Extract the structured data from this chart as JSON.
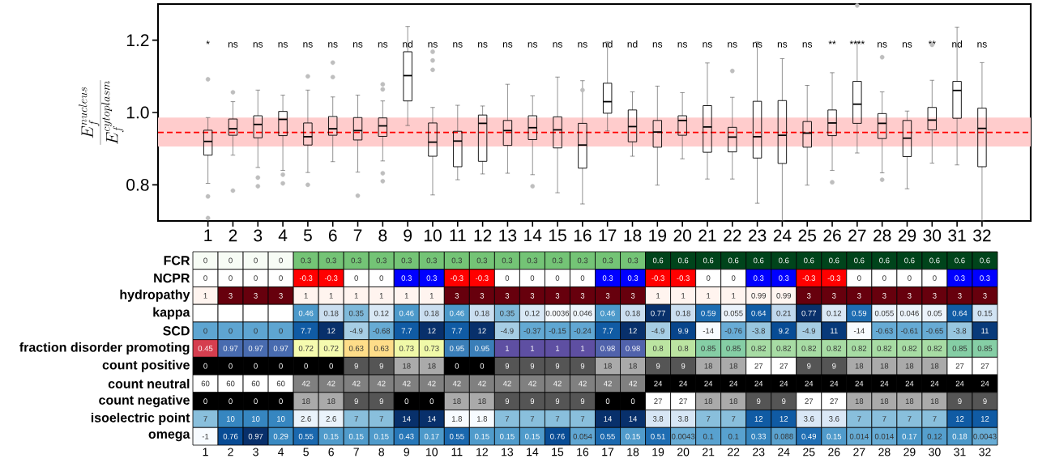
{
  "chart_data": [
    {
      "type": "box",
      "ylabel": "\\frac{E_f^{nucleus}}{E_f^{cytoplasm}}",
      "categories": [
        "1",
        "2",
        "3",
        "4",
        "5",
        "6",
        "7",
        "8",
        "9",
        "10",
        "11",
        "12",
        "13",
        "14",
        "15",
        "16",
        "17",
        "18",
        "19",
        "20",
        "21",
        "22",
        "23",
        "24",
        "25",
        "26",
        "27",
        "28",
        "29",
        "30",
        "31",
        "32"
      ],
      "boxes": [
        {
          "low": 0.804,
          "q1": 0.882,
          "median": 0.92,
          "q3": 0.951,
          "high": 0.986,
          "outliers": [
            1.092,
            0.768,
            0.708
          ]
        },
        {
          "low": 0.882,
          "q1": 0.937,
          "median": 0.955,
          "q3": 0.982,
          "high": 1.03,
          "outliers": [
            1.056,
            0.784
          ]
        },
        {
          "low": 0.848,
          "q1": 0.93,
          "median": 0.967,
          "q3": 0.991,
          "high": 1.062,
          "outliers": [
            0.82,
            0.796
          ]
        },
        {
          "low": 0.84,
          "q1": 0.936,
          "median": 0.981,
          "q3": 1.003,
          "high": 1.048,
          "outliers": [
            0.828,
            0.804
          ]
        },
        {
          "low": 0.834,
          "q1": 0.91,
          "median": 0.933,
          "q3": 0.971,
          "high": 1.062,
          "outliers": [
            1.1,
            0.8
          ]
        },
        {
          "low": 0.864,
          "q1": 0.937,
          "median": 0.955,
          "q3": 0.989,
          "high": 1.043,
          "outliers": [
            1.138,
            1.098
          ]
        },
        {
          "low": 0.835,
          "q1": 0.924,
          "median": 0.95,
          "q3": 0.986,
          "high": 1.048,
          "outliers": [
            0.77
          ]
        },
        {
          "low": 0.866,
          "q1": 0.934,
          "median": 0.963,
          "q3": 0.985,
          "high": 1.032,
          "outliers": [
            1.078,
            1.064,
            0.832,
            0.81
          ]
        },
        {
          "low": 0.964,
          "q1": 1.032,
          "median": 1.102,
          "q3": 1.168,
          "high": 1.238
        },
        {
          "low": 0.772,
          "q1": 0.879,
          "median": 0.918,
          "q3": 0.971,
          "high": 1.014,
          "outliers": [
            1.168,
            1.144,
            1.118
          ]
        },
        {
          "low": 0.814,
          "q1": 0.85,
          "median": 0.921,
          "q3": 0.948,
          "high": 1.02
        },
        {
          "low": 0.83,
          "q1": 0.865,
          "median": 0.97,
          "q3": 0.993,
          "high": 1.018
        },
        {
          "low": 0.832,
          "q1": 0.909,
          "median": 0.95,
          "q3": 0.978,
          "high": 1.078
        },
        {
          "low": 0.828,
          "q1": 0.925,
          "median": 0.958,
          "q3": 0.991,
          "high": 1.046,
          "outliers": [
            0.796
          ]
        },
        {
          "low": 0.778,
          "q1": 0.902,
          "median": 0.952,
          "q3": 0.988,
          "high": 1.098
        },
        {
          "low": 0.747,
          "q1": 0.846,
          "median": 0.91,
          "q3": 0.97,
          "high": 1.088,
          "outliers": [
            1.062
          ]
        },
        {
          "low": 0.949,
          "q1": 0.998,
          "median": 1.03,
          "q3": 1.081,
          "high": 1.195
        },
        {
          "low": 0.879,
          "q1": 0.919,
          "median": 0.961,
          "q3": 1.007,
          "high": 1.057
        },
        {
          "low": 0.799,
          "q1": 0.904,
          "median": 0.946,
          "q3": 0.978,
          "high": 1.073
        },
        {
          "low": 0.872,
          "q1": 0.937,
          "median": 0.978,
          "q3": 0.991,
          "high": 1.055
        },
        {
          "low": 0.816,
          "q1": 0.89,
          "median": 0.96,
          "q3": 1.019,
          "high": 1.137
        },
        {
          "low": 0.816,
          "q1": 0.891,
          "median": 0.932,
          "q3": 0.959,
          "high": 1.042,
          "outliers": [
            1.115
          ]
        },
        {
          "low": 0.749,
          "q1": 0.874,
          "median": 0.933,
          "q3": 1.031,
          "high": 1.195
        },
        {
          "low": 0.7,
          "q1": 0.859,
          "median": 0.937,
          "q3": 1.033,
          "high": 1.149
        },
        {
          "low": 0.799,
          "q1": 0.904,
          "median": 0.943,
          "q3": 0.975,
          "high": 1.075
        },
        {
          "low": 0.84,
          "q1": 0.936,
          "median": 0.971,
          "q3": 1.007,
          "high": 1.11,
          "outliers": [
            0.807
          ]
        },
        {
          "low": 0.888,
          "q1": 0.97,
          "median": 1.023,
          "q3": 1.086,
          "high": 1.195,
          "outliers": [
            1.296
          ]
        },
        {
          "low": 0.833,
          "q1": 0.928,
          "median": 0.97,
          "q3": 0.997,
          "high": 1.057,
          "outliers": [
            1.153,
            0.814
          ]
        },
        {
          "low": 0.789,
          "q1": 0.878,
          "median": 0.929,
          "q3": 0.978,
          "high": 1.004
        },
        {
          "low": 0.86,
          "q1": 0.952,
          "median": 0.979,
          "q3": 1.014,
          "high": 1.089,
          "outliers": [
            1.187
          ]
        },
        {
          "low": 0.855,
          "q1": 0.984,
          "median": 1.061,
          "q3": 1.086,
          "high": 1.236
        },
        {
          "low": 0.7,
          "q1": 0.85,
          "median": 0.956,
          "q3": 1.012,
          "high": 1.138
        }
      ],
      "ylim": [
        0.7,
        1.3
      ],
      "yticks": [
        0.8,
        {
          "value": 1.0,
          "label": "1.0"
        },
        1.2
      ],
      "ref_lines": [
        {
          "axis": "y",
          "value": 0.945,
          "color": "#ff0000",
          "line_style": "dashed"
        }
      ],
      "bands": [
        {
          "axis": "y",
          "from": 0.906,
          "to": 0.986,
          "color": "#ffcccc"
        }
      ],
      "annotations": [
        "*",
        "ns",
        "ns",
        "ns",
        "ns",
        "ns",
        "ns",
        "ns",
        "nd",
        "ns",
        "ns",
        "ns",
        "ns",
        "ns",
        "ns",
        "ns",
        "nd",
        "nd",
        "ns",
        "ns",
        "ns",
        "ns",
        "ns",
        "ns",
        "ns",
        "**",
        "****",
        "ns",
        "ns",
        "**",
        "nd",
        "ns"
      ]
    },
    {
      "type": "heatmap",
      "categories": [
        "1",
        "2",
        "3",
        "4",
        "5",
        "6",
        "7",
        "8",
        "9",
        "10",
        "11",
        "12",
        "13",
        "14",
        "15",
        "16",
        "17",
        "18",
        "19",
        "20",
        "21",
        "22",
        "23",
        "24",
        "25",
        "26",
        "27",
        "28",
        "29",
        "30",
        "31",
        "32"
      ],
      "y_categories": [
        "FCR",
        "NCPR",
        "hydropathy",
        "kappa",
        "SCD",
        "fraction disorder promoting",
        "count positive",
        "count neutral",
        "count negative",
        "isoelectric point",
        "omega"
      ],
      "cells": [
        [
          0,
          0,
          0,
          0,
          0.3,
          0.3,
          0.3,
          0.3,
          0.3,
          0.3,
          0.3,
          0.3,
          0.3,
          0.3,
          0.3,
          0.3,
          0.3,
          0.3,
          0.6,
          0.6,
          0.6,
          0.6,
          0.6,
          0.6,
          0.6,
          0.6,
          0.6,
          0.6,
          0.6,
          0.6,
          0.6,
          0.6
        ],
        [
          0,
          0,
          0,
          0,
          -0.3,
          -0.3,
          0,
          0,
          0.3,
          0.3,
          -0.3,
          -0.3,
          0,
          0,
          0,
          0,
          0.3,
          0.3,
          -0.3,
          -0.3,
          0,
          0,
          0.3,
          0.3,
          -0.3,
          -0.3,
          0,
          0,
          0,
          0,
          0.3,
          0.3
        ],
        [
          1,
          3,
          3,
          3,
          1,
          1,
          1,
          1,
          1,
          1,
          3,
          3,
          3,
          3,
          3,
          3,
          3,
          3,
          1,
          1,
          1,
          1,
          0.99,
          0.99,
          3,
          3,
          3,
          3,
          3,
          3,
          3,
          3
        ],
        [
          null,
          null,
          null,
          null,
          0.46,
          0.18,
          0.35,
          0.12,
          0.46,
          0.18,
          0.46,
          0.18,
          0.35,
          0.12,
          0.0036,
          0.046,
          0.46,
          0.18,
          0.77,
          0.18,
          0.59,
          0.055,
          0.64,
          0.21,
          0.77,
          0.12,
          0.59,
          0.055,
          0.046,
          0.05,
          0.64,
          0.15
        ],
        [
          0,
          0,
          0,
          0,
          7.7,
          12,
          -4.9,
          -0.68,
          7.7,
          12,
          7.7,
          12,
          -4.9,
          -0.37,
          -0.15,
          -0.24,
          7.7,
          12,
          -4.9,
          9.9,
          -14,
          -0.76,
          -3.8,
          9.2,
          -4.9,
          11,
          -14,
          -0.63,
          -0.61,
          -0.65,
          -3.8,
          11
        ],
        [
          0.45,
          0.97,
          0.97,
          0.97,
          0.72,
          0.72,
          0.63,
          0.63,
          0.73,
          0.73,
          0.95,
          0.95,
          1,
          1,
          1,
          1,
          0.98,
          0.98,
          0.8,
          0.8,
          0.85,
          0.85,
          0.82,
          0.82,
          0.82,
          0.82,
          0.82,
          0.82,
          0.82,
          0.82,
          0.85,
          0.85
        ],
        [
          0,
          0,
          0,
          0,
          0,
          0,
          9,
          9,
          18,
          18,
          0,
          0,
          9,
          9,
          9,
          9,
          18,
          18,
          9,
          9,
          18,
          18,
          27,
          27,
          9,
          9,
          18,
          18,
          18,
          18,
          27,
          27
        ],
        [
          60,
          60,
          60,
          60,
          42,
          42,
          42,
          42,
          42,
          42,
          42,
          42,
          42,
          42,
          42,
          42,
          42,
          42,
          24,
          24,
          24,
          24,
          24,
          24,
          24,
          24,
          24,
          24,
          24,
          24,
          24,
          24
        ],
        [
          0,
          0,
          0,
          0,
          18,
          18,
          9,
          9,
          0,
          0,
          18,
          18,
          9,
          9,
          9,
          9,
          0,
          0,
          27,
          27,
          18,
          18,
          9,
          9,
          27,
          27,
          18,
          18,
          18,
          18,
          9,
          9
        ],
        [
          7,
          10,
          10,
          10,
          2.6,
          2.6,
          7,
          7,
          14,
          14,
          1.8,
          1.8,
          7,
          7,
          7,
          7,
          14,
          14,
          3.8,
          3.8,
          7,
          7,
          12,
          12,
          3.6,
          3.6,
          7,
          7,
          7,
          7,
          12,
          12
        ],
        [
          -1,
          0.76,
          0.97,
          0.29,
          0.55,
          0.15,
          0.15,
          0.15,
          0.43,
          0.17,
          0.55,
          0.15,
          0.15,
          0.15,
          0.76,
          0.054,
          0.55,
          0.15,
          0.51,
          0.0043,
          0.1,
          0.1,
          0.33,
          0.088,
          0.49,
          0.15,
          0.014,
          0.014,
          0.17,
          0.12,
          0.18,
          0.0043
        ]
      ],
      "data_labels": true
    }
  ]
}
